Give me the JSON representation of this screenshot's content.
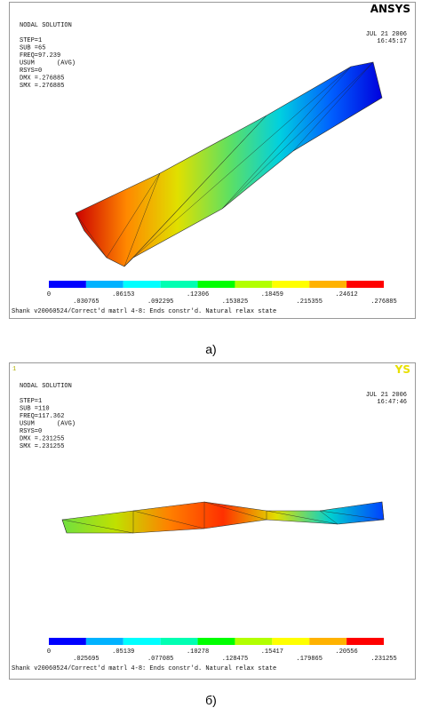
{
  "panels": [
    {
      "logo": "ANSYS",
      "title": "NODAL SOLUTION",
      "info": [
        "STEP=1",
        "SUB =65",
        "FREQ=97.239",
        "USUM      (AVG)",
        "RSYS=0",
        "DMX =.276885",
        "SMX =.276885"
      ],
      "date": "JUL 21 2006",
      "time": "16:45:17",
      "legend_top": [
        "0",
        ".06153",
        ".12306",
        ".18459",
        ".24612"
      ],
      "legend_bottom": [
        ".030765",
        ".092295",
        ".153825",
        ".215355",
        ".276885"
      ],
      "footer": "Shank v20060524/Correct'd matrl 4-8: Ends constr'd. Natural relax state",
      "caption": "a)"
    },
    {
      "marker": "1",
      "logo": "YS",
      "title": "NODAL SOLUTION",
      "info": [
        "STEP=1",
        "SUB =110",
        "FREQ=117.362",
        "USUM      (AVG)",
        "RSYS=0",
        "DMX =.231255",
        "SMX =.231255"
      ],
      "date": "JUL 21 2006",
      "time": "16:47:46",
      "legend_top": [
        "0",
        ".05139",
        ".10278",
        ".15417",
        ".20556"
      ],
      "legend_bottom": [
        ".025695",
        ".077085",
        ".128475",
        ".179865",
        ".231255"
      ],
      "footer": "Shank v20060524/Correct'd matrl 4-8: Ends constr'd. Natural relax state",
      "caption": "б)"
    }
  ]
}
